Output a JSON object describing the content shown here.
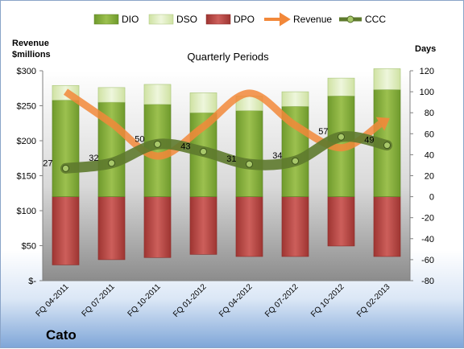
{
  "chart_data": {
    "type": "bar",
    "title": "Quarterly Periods",
    "company": "Cato",
    "left_axis": {
      "label_line1": "Revenue",
      "label_line2": "$millions",
      "min": 0,
      "max": 300,
      "step": 50,
      "tick_labels": [
        "$-",
        "$50",
        "$100",
        "$150",
        "$200",
        "$250",
        "$300"
      ]
    },
    "right_axis": {
      "label": "Days",
      "min": -80,
      "max": 120,
      "step": 20,
      "tick_labels": [
        "-80",
        "-60",
        "-40",
        "-20",
        "0",
        "20",
        "40",
        "60",
        "80",
        "100",
        "120"
      ]
    },
    "categories": [
      "FQ 04-2011",
      "FQ 07-2011",
      "FQ 10-2011",
      "FQ 01-2012",
      "FQ 04-2012",
      "FQ 07-2012",
      "FQ 10-2012",
      "FQ 02-2013"
    ],
    "series": [
      {
        "name": "DIO",
        "axis": "right",
        "kind": "stacked-bar",
        "color": "#8db33f",
        "values": [
          92,
          90,
          88,
          80,
          82,
          86,
          96,
          102
        ]
      },
      {
        "name": "DSO",
        "axis": "right",
        "kind": "stacked-bar",
        "color": "#e2efc4",
        "values": [
          14,
          14,
          19,
          19,
          14,
          14,
          17,
          20
        ]
      },
      {
        "name": "DPO",
        "axis": "right",
        "kind": "bar-negative",
        "color": "#c0504d",
        "values": [
          -65,
          -60,
          -58,
          -55,
          -57,
          -57,
          -47,
          -57
        ]
      },
      {
        "name": "Revenue",
        "axis": "left",
        "kind": "line",
        "color": "#f2883a",
        "values": [
          270,
          225,
          178,
          220,
          268,
          222,
          190,
          230
        ]
      },
      {
        "name": "CCC",
        "axis": "right",
        "kind": "line-markers",
        "color": "#5e7a2d",
        "values": [
          27,
          32,
          50,
          43,
          31,
          34,
          57,
          49
        ],
        "labels": [
          "27",
          "32",
          "50",
          "43",
          "31",
          "34",
          "57",
          "49"
        ]
      }
    ],
    "legend": {
      "position": "top"
    },
    "grid": false
  }
}
